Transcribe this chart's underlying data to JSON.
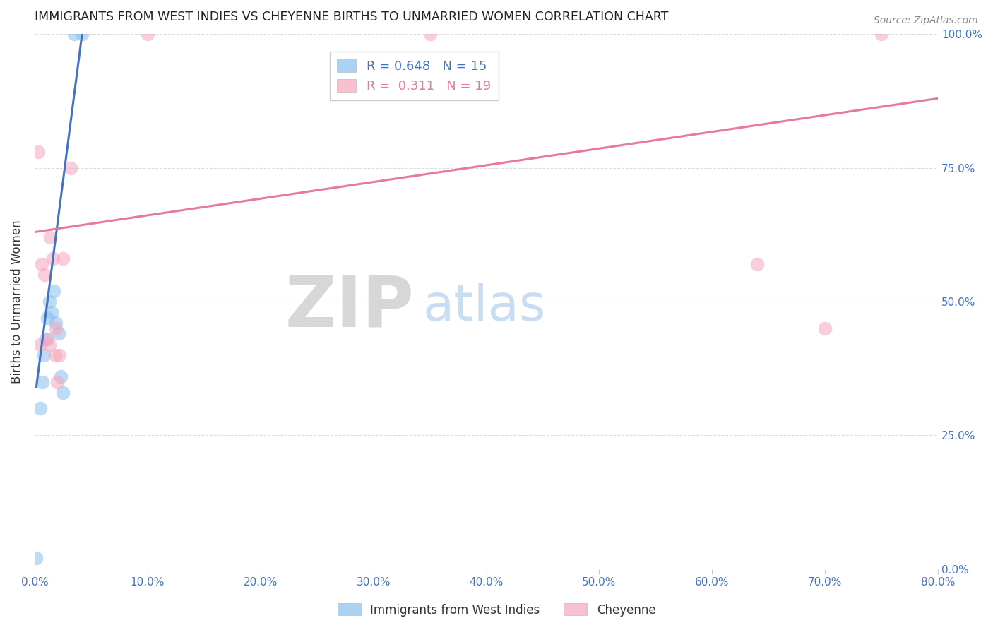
{
  "title": "IMMIGRANTS FROM WEST INDIES VS CHEYENNE BIRTHS TO UNMARRIED WOMEN CORRELATION CHART",
  "source": "Source: ZipAtlas.com",
  "ylabel": "Births to Unmarried Women",
  "xlim": [
    0.0,
    80.0
  ],
  "ylim": [
    0.0,
    100.0
  ],
  "xticks": [
    0.0,
    10.0,
    20.0,
    30.0,
    40.0,
    50.0,
    60.0,
    70.0,
    80.0
  ],
  "yticks": [
    0.0,
    25.0,
    50.0,
    75.0,
    100.0
  ],
  "blue_label": "Immigrants from West Indies",
  "pink_label": "Cheyenne",
  "blue_R": "0.648",
  "blue_N": "15",
  "pink_R": "0.311",
  "pink_N": "19",
  "blue_scatter_x": [
    0.15,
    0.5,
    0.7,
    0.8,
    1.0,
    1.1,
    1.3,
    1.5,
    1.7,
    1.9,
    2.1,
    2.3,
    2.5,
    3.5,
    4.2
  ],
  "blue_scatter_y": [
    2.0,
    30.0,
    35.0,
    40.0,
    43.0,
    47.0,
    50.0,
    48.0,
    52.0,
    46.0,
    44.0,
    36.0,
    33.0,
    100.0,
    100.0
  ],
  "pink_scatter_x": [
    0.3,
    0.6,
    0.9,
    1.1,
    1.3,
    1.6,
    1.9,
    2.2,
    2.5,
    3.2,
    10.0,
    35.0,
    64.0,
    70.0,
    75.0,
    1.4,
    1.8,
    2.0,
    0.5
  ],
  "pink_scatter_y": [
    78.0,
    57.0,
    55.0,
    43.0,
    42.0,
    58.0,
    45.0,
    40.0,
    58.0,
    75.0,
    100.0,
    100.0,
    57.0,
    45.0,
    100.0,
    62.0,
    40.0,
    35.0,
    42.0
  ],
  "blue_line_x": [
    0.15,
    4.2
  ],
  "blue_line_y": [
    34.0,
    100.0
  ],
  "pink_line_x": [
    0.0,
    80.0
  ],
  "pink_line_y": [
    63.0,
    88.0
  ],
  "bg_color": "#ffffff",
  "blue_color": "#89bfef",
  "pink_color": "#f4a7bc",
  "blue_line_color": "#4472c4",
  "pink_line_color": "#e87a99",
  "title_color": "#222222",
  "axis_label_color": "#333333",
  "tick_color_right": "#4472c4",
  "tick_color_bottom": "#4472c4",
  "grid_color": "#dddddd",
  "watermark_zip": "ZIP",
  "watermark_atlas": "atlas",
  "watermark_zip_color": "#d0d0d0",
  "watermark_atlas_color": "#c0d8f0",
  "legend_R_blue": "R = 0.648",
  "legend_N_blue": "N = 15",
  "legend_R_pink": "R =  0.311",
  "legend_N_pink": "N = 19"
}
